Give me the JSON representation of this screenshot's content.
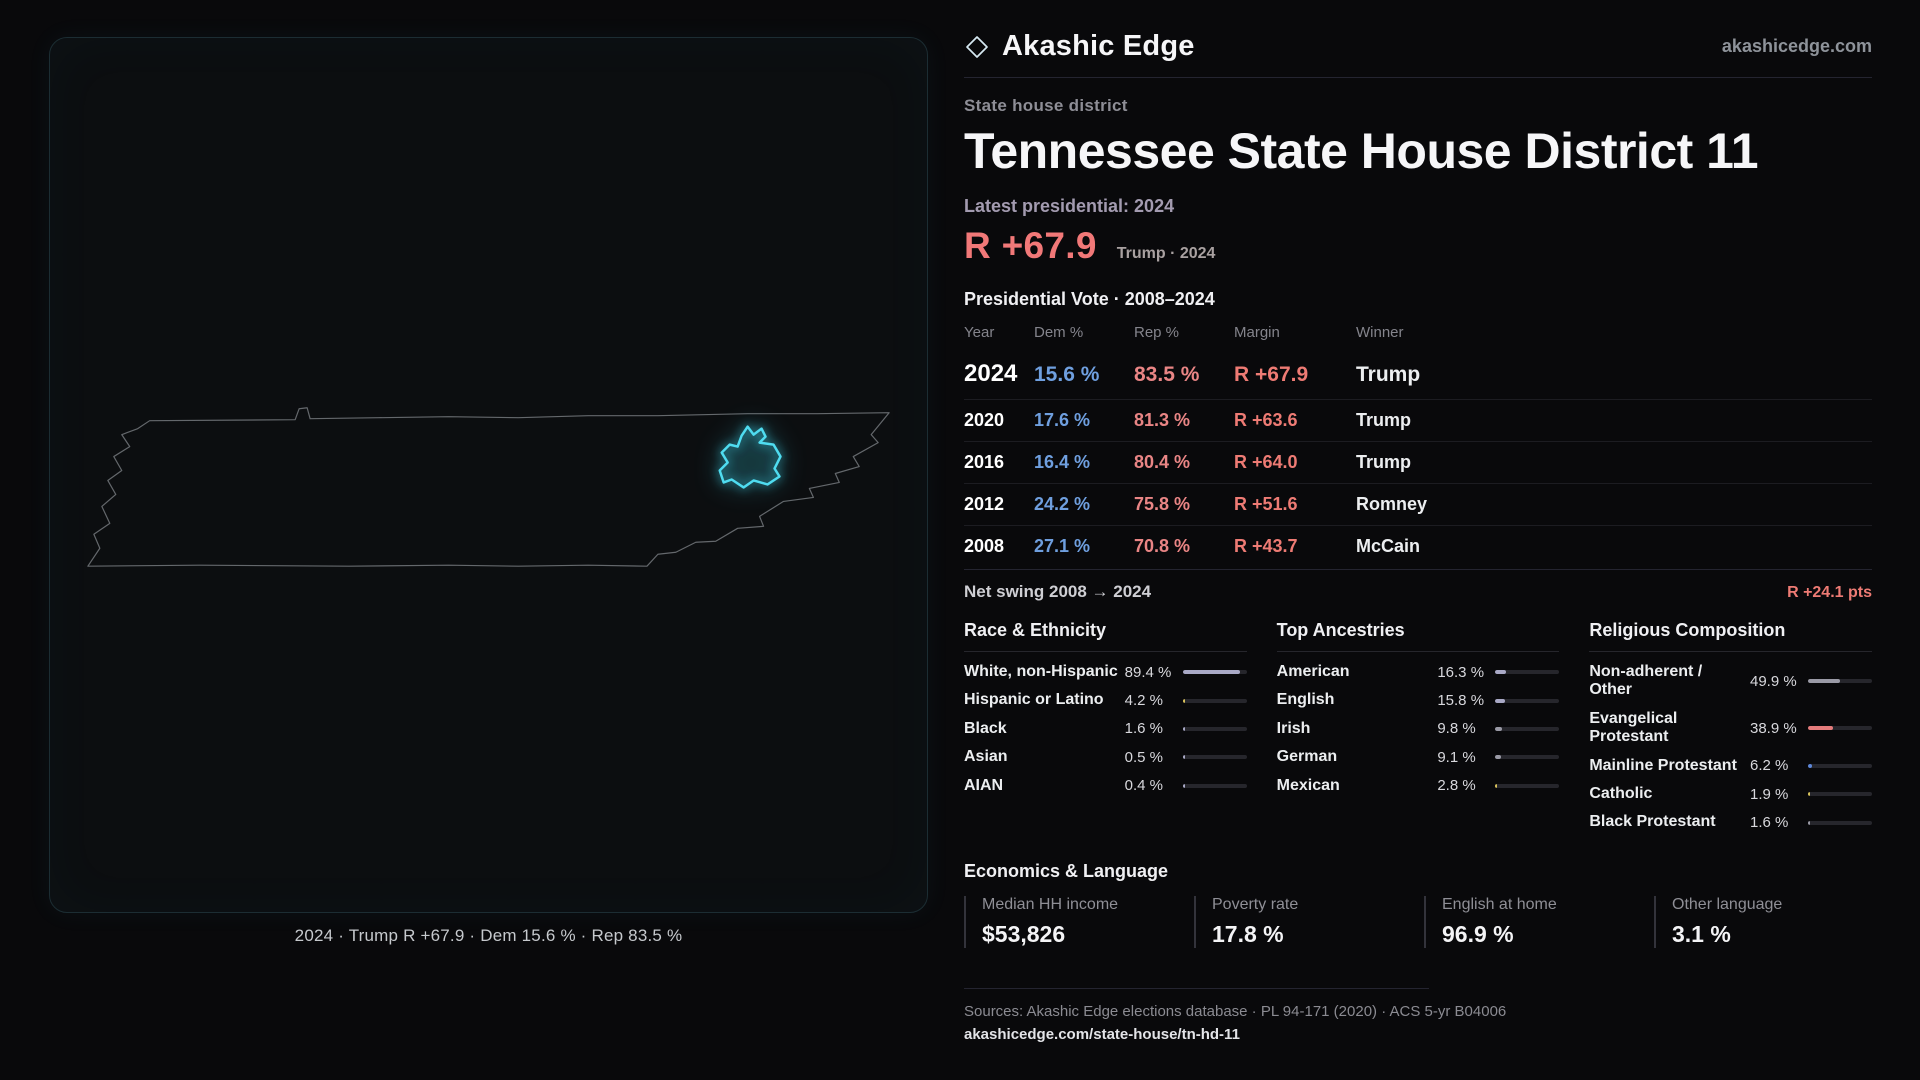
{
  "brand": {
    "name": "Akashic Edge",
    "domain": "akashicedge.com"
  },
  "page": {
    "category": "State house district",
    "title": "Tennessee State House District 11"
  },
  "latest": {
    "label": "Latest presidential: 2024",
    "margin": "R +67.9",
    "note": "Trump · 2024"
  },
  "map": {
    "caption": "2024 · Trump R +67.9 · Dem 15.6 % · Rep 83.5 %"
  },
  "colors": {
    "dem_blue": "#6f9fdf",
    "rep_red": "#ee7b74",
    "district_highlight": "#3fd9ef",
    "background": "#09090b"
  },
  "vote_table": {
    "title": "Presidential Vote · 2008–2024",
    "columns": [
      "Year",
      "Dem %",
      "Rep %",
      "Margin",
      "Winner"
    ],
    "rows": [
      {
        "year": "2024",
        "dem": "15.6 %",
        "rep": "83.5 %",
        "margin": "R +67.9",
        "winner": "Trump",
        "highlight": true
      },
      {
        "year": "2020",
        "dem": "17.6 %",
        "rep": "81.3 %",
        "margin": "R +63.6",
        "winner": "Trump",
        "highlight": false
      },
      {
        "year": "2016",
        "dem": "16.4 %",
        "rep": "80.4 %",
        "margin": "R +64.0",
        "winner": "Trump",
        "highlight": false
      },
      {
        "year": "2012",
        "dem": "24.2 %",
        "rep": "75.8 %",
        "margin": "R +51.6",
        "winner": "Romney",
        "highlight": false
      },
      {
        "year": "2008",
        "dem": "27.1 %",
        "rep": "70.8 %",
        "margin": "R +43.7",
        "winner": "McCain",
        "highlight": false
      }
    ],
    "net_swing_label": "Net swing 2008 → 2024",
    "net_swing_value": "R +24.1 pts"
  },
  "demographics": [
    {
      "title": "Race & Ethnicity",
      "items": [
        {
          "label": "White, non-Hispanic",
          "value": "89.4 %",
          "pct": 89.4,
          "color": "#a9a9c6"
        },
        {
          "label": "Hispanic or Latino",
          "value": "4.2 %",
          "pct": 4.2,
          "color": "#d9c35b"
        },
        {
          "label": "Black",
          "value": "1.6 %",
          "pct": 1.6,
          "color": "#a9a9c6"
        },
        {
          "label": "Asian",
          "value": "0.5 %",
          "pct": 0.5,
          "color": "#a9a9c6"
        },
        {
          "label": "AIAN",
          "value": "0.4 %",
          "pct": 0.4,
          "color": "#a9a9c6"
        }
      ]
    },
    {
      "title": "Top Ancestries",
      "items": [
        {
          "label": "American",
          "value": "16.3 %",
          "pct": 16.3,
          "color": "#a9a9c6"
        },
        {
          "label": "English",
          "value": "15.8 %",
          "pct": 15.8,
          "color": "#a9a9c6"
        },
        {
          "label": "Irish",
          "value": "9.8 %",
          "pct": 9.8,
          "color": "#9a9aa6"
        },
        {
          "label": "German",
          "value": "9.1 %",
          "pct": 9.1,
          "color": "#9a9aa6"
        },
        {
          "label": "Mexican",
          "value": "2.8 %",
          "pct": 2.8,
          "color": "#d9c35b"
        }
      ]
    },
    {
      "title": "Religious Composition",
      "items": [
        {
          "label": "Non-adherent / Other",
          "value": "49.9 %",
          "pct": 49.9,
          "color": "#9a9aa6"
        },
        {
          "label": "Evangelical Protestant",
          "value": "38.9 %",
          "pct": 38.9,
          "color": "#e57c7c"
        },
        {
          "label": "Mainline Protestant",
          "value": "6.2 %",
          "pct": 6.2,
          "color": "#5d87d9"
        },
        {
          "label": "Catholic",
          "value": "1.9 %",
          "pct": 1.9,
          "color": "#d9c35b"
        },
        {
          "label": "Black Protestant",
          "value": "1.6 %",
          "pct": 1.6,
          "color": "#9a9aa6"
        }
      ]
    }
  ],
  "economics": {
    "title": "Economics & Language",
    "stats": [
      {
        "label": "Median HH income",
        "value": "$53,826"
      },
      {
        "label": "Poverty rate",
        "value": "17.8 %"
      },
      {
        "label": "English at home",
        "value": "96.9 %"
      },
      {
        "label": "Other language",
        "value": "3.1 %"
      }
    ]
  },
  "footer": {
    "sources": "Sources: Akashic Edge elections database · PL 94-171 (2020) · ACS 5-yr B04006",
    "permalink": "akashicedge.com/state-house/tn-hd-11"
  }
}
